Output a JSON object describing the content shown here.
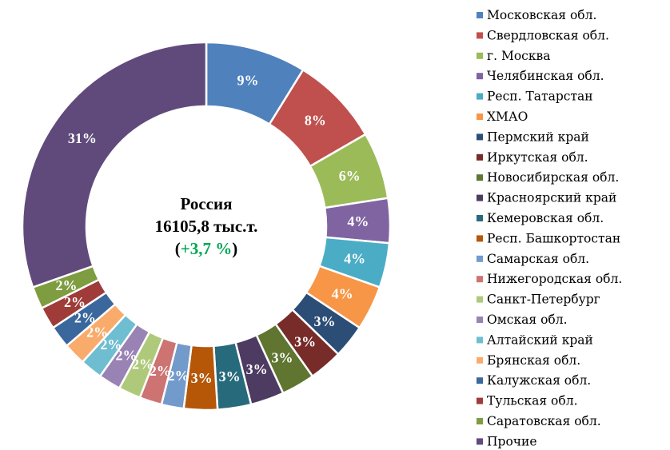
{
  "chart_data": {
    "type": "pie",
    "donut": true,
    "center": {
      "title": "Россия",
      "total": "16105,8 тыс.т.",
      "change_open": "(",
      "change": "+3,7 %",
      "change_close": ")",
      "change_color": "#00A651"
    },
    "legend_position": "right",
    "slices": [
      {
        "name": "Московская обл.",
        "value": 9,
        "label": "9%",
        "color": "#4F81BD"
      },
      {
        "name": "Свердловская обл.",
        "value": 8,
        "label": "8%",
        "color": "#C0504D"
      },
      {
        "name": "г. Москва",
        "value": 6,
        "label": "6%",
        "color": "#9BBB59"
      },
      {
        "name": "Челябинская обл.",
        "value": 4,
        "label": "4%",
        "color": "#8064A2"
      },
      {
        "name": "Респ. Татарстан",
        "value": 4,
        "label": "4%",
        "color": "#4BACC6"
      },
      {
        "name": "ХМАО",
        "value": 4,
        "label": "4%",
        "color": "#F79646"
      },
      {
        "name": "Пермский край",
        "value": 3,
        "label": "3%",
        "color": "#2C4D75"
      },
      {
        "name": "Иркутская обл.",
        "value": 3,
        "label": "3%",
        "color": "#772C2A"
      },
      {
        "name": "Новосибирская обл.",
        "value": 3,
        "label": "3%",
        "color": "#5F7530"
      },
      {
        "name": "Красноярский край",
        "value": 3,
        "label": "3%",
        "color": "#4D3B62"
      },
      {
        "name": "Кемеровская обл.",
        "value": 3,
        "label": "3%",
        "color": "#276A7C"
      },
      {
        "name": "Респ. Башкортостан",
        "value": 3,
        "label": "3%",
        "color": "#B65708"
      },
      {
        "name": "Самарская обл.",
        "value": 2,
        "label": "2%",
        "color": "#729ACA"
      },
      {
        "name": "Нижегородская обл.",
        "value": 2,
        "label": "2%",
        "color": "#CD7371"
      },
      {
        "name": "Санкт-Петербург",
        "value": 2,
        "label": "2%",
        "color": "#AFC97A"
      },
      {
        "name": "Омская обл.",
        "value": 2,
        "label": "2%",
        "color": "#9983B5"
      },
      {
        "name": "Алтайский край",
        "value": 2,
        "label": "2%",
        "color": "#6FBDD1"
      },
      {
        "name": "Брянская обл.",
        "value": 2,
        "label": "2%",
        "color": "#F9AB6B"
      },
      {
        "name": "Калужская обл.",
        "value": 2,
        "label": "2%",
        "color": "#3A679C"
      },
      {
        "name": "Тульская обл.",
        "value": 2,
        "label": "2%",
        "color": "#9F3B38"
      },
      {
        "name": "Саратовская обл.",
        "value": 2,
        "label": "2%",
        "color": "#7E9C40"
      },
      {
        "name": "Прочие",
        "value": 31,
        "label": "31%",
        "color": "#604A7B"
      }
    ]
  }
}
